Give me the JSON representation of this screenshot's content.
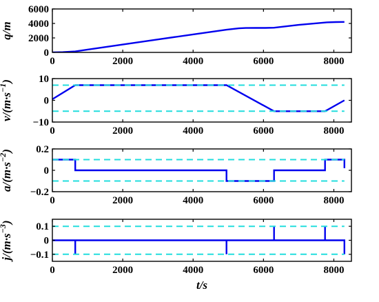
{
  "chart_data": [
    {
      "type": "line",
      "ylabel": "q/m",
      "xlim": [
        0,
        8500
      ],
      "ylim": [
        0,
        6000
      ],
      "x_ticks": [
        0,
        2000,
        4000,
        6000,
        8000
      ],
      "y_ticks": [
        0,
        2000,
        4000,
        6000
      ],
      "series": [
        {
          "color": "#0000ee",
          "style": "solid",
          "x": [
            0,
            300,
            650,
            1000,
            2000,
            3000,
            4000,
            4950,
            5300,
            5500,
            5800,
            6050,
            6300,
            7000,
            7800,
            8050,
            8300
          ],
          "y": [
            0,
            35,
            130,
            390,
            1090,
            1790,
            2490,
            3130,
            3320,
            3370,
            3385,
            3380,
            3410,
            3800,
            4150,
            4195,
            4205
          ]
        }
      ]
    },
    {
      "type": "line",
      "ylabel": "v/(m·s−1)",
      "xlim": [
        0,
        8500
      ],
      "ylim": [
        -10,
        10
      ],
      "x_ticks": [
        0,
        2000,
        4000,
        6000,
        8000
      ],
      "y_ticks": [
        -10,
        0,
        10
      ],
      "series": [
        {
          "color": "#0000ee",
          "style": "solid",
          "x": [
            0,
            650,
            4950,
            6300,
            7750,
            8300
          ],
          "y": [
            0.5,
            7,
            7,
            -5,
            -5,
            0
          ]
        },
        {
          "color": "#22dddd",
          "style": "dashed",
          "x": [
            0,
            8300
          ],
          "y": [
            7,
            7
          ]
        },
        {
          "color": "#22dddd",
          "style": "dashed",
          "x": [
            0,
            8300
          ],
          "y": [
            -5,
            -5
          ]
        }
      ]
    },
    {
      "type": "line",
      "ylabel": "a/(m·s−2)",
      "xlim": [
        0,
        8500
      ],
      "ylim": [
        -0.2,
        0.2
      ],
      "x_ticks": [
        0,
        2000,
        4000,
        6000,
        8000
      ],
      "y_ticks": [
        -0.2,
        0,
        0.2
      ],
      "y_tick_labels": [
        "-0.2",
        "0",
        "0.2"
      ],
      "series": [
        {
          "color": "#0000ee",
          "style": "solid",
          "x": [
            0,
            650,
            650,
            4950,
            4950,
            6300,
            6300,
            7750,
            7750,
            8300,
            8300
          ],
          "y": [
            0.1,
            0.1,
            0,
            0,
            -0.1,
            -0.1,
            0,
            0,
            0.1,
            0.1,
            0.02
          ]
        },
        {
          "color": "#22dddd",
          "style": "dashed",
          "x": [
            0,
            8300
          ],
          "y": [
            0.1,
            0.1
          ]
        },
        {
          "color": "#22dddd",
          "style": "dashed",
          "x": [
            0,
            8300
          ],
          "y": [
            -0.1,
            -0.1
          ]
        }
      ]
    },
    {
      "type": "line",
      "ylabel": "j/(m·s−3)",
      "xlabel": "t/s",
      "xlim": [
        0,
        8500
      ],
      "ylim": [
        -0.15,
        0.15
      ],
      "x_ticks": [
        0,
        2000,
        4000,
        6000,
        8000
      ],
      "y_ticks": [
        -0.1,
        0,
        0.1
      ],
      "y_tick_labels": [
        "-0.1",
        "0",
        "0.1"
      ],
      "series": [
        {
          "color": "#0000ee",
          "style": "solid",
          "x": [
            0,
            650,
            650,
            650,
            4950,
            4950,
            4950,
            6300,
            6300,
            6300,
            7750,
            7750,
            7750,
            8300,
            8300
          ],
          "y": [
            0,
            0,
            -0.1,
            0,
            0,
            -0.1,
            0,
            0,
            0.1,
            0,
            0,
            0.1,
            0,
            0,
            -0.1
          ]
        },
        {
          "color": "#22dddd",
          "style": "dashed",
          "x": [
            0,
            8300
          ],
          "y": [
            0.1,
            0.1
          ]
        },
        {
          "color": "#22dddd",
          "style": "dashed",
          "x": [
            0,
            8300
          ],
          "y": [
            -0.1,
            -0.1
          ]
        }
      ]
    }
  ]
}
